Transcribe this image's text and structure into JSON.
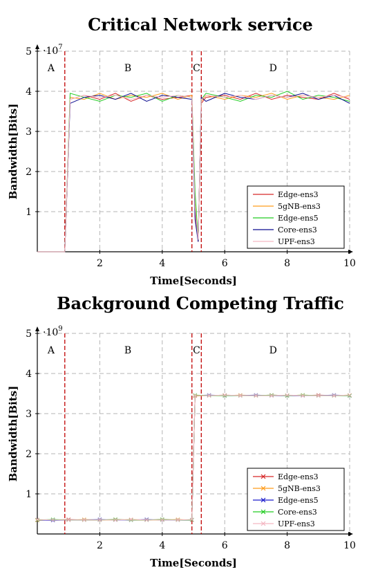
{
  "chart_data": [
    {
      "type": "line",
      "title": "Critical Network service",
      "xlabel": "Time[Seconds]",
      "ylabel": "Bandwidth[Bits]",
      "y_multiplier": "·10",
      "y_exponent": "7",
      "xlim": [
        0,
        10
      ],
      "ylim": [
        0,
        5
      ],
      "xticks": [
        "2",
        "4",
        "6",
        "8",
        "10"
      ],
      "xtick_values": [
        2,
        4,
        6,
        8,
        10
      ],
      "yticks": [
        "1",
        "2",
        "3",
        "4",
        "5"
      ],
      "ytick_values": [
        1,
        2,
        3,
        4,
        5
      ],
      "grid": true,
      "legend_position": "bottom-right",
      "marker": "none",
      "phase_lines": [
        0.88,
        4.95,
        5.25
      ],
      "phases": [
        {
          "label": "A",
          "x": 0.44
        },
        {
          "label": "B",
          "x": 2.9
        },
        {
          "label": "C",
          "x": 5.1
        },
        {
          "label": "D",
          "x": 7.55
        }
      ],
      "series": [
        {
          "name": "Edge-ens3",
          "color": "#d62728",
          "x": [
            0,
            0.88,
            1.05,
            1.5,
            2,
            2.5,
            3,
            3.5,
            4,
            4.5,
            4.95,
            5.05,
            5.15,
            5.25,
            5.4,
            6,
            6.5,
            7,
            7.5,
            8,
            8.5,
            9,
            9.5,
            10
          ],
          "y": [
            0,
            0,
            3.8,
            3.9,
            3.8,
            3.95,
            3.75,
            3.9,
            3.8,
            3.85,
            3.9,
            1.0,
            0.25,
            3.7,
            3.85,
            3.9,
            3.8,
            3.95,
            3.8,
            3.9,
            3.85,
            3.8,
            3.95,
            3.8
          ]
        },
        {
          "name": "5gNB-ens3",
          "color": "#ff9c1a",
          "x": [
            0,
            0.88,
            1.05,
            1.5,
            2,
            2.5,
            3,
            3.5,
            4,
            4.5,
            4.95,
            5.05,
            5.15,
            5.25,
            5.4,
            6,
            6.5,
            7,
            7.5,
            8,
            8.5,
            9,
            9.5,
            10
          ],
          "y": [
            0,
            0,
            3.85,
            3.8,
            3.95,
            3.8,
            3.9,
            3.85,
            3.95,
            3.8,
            3.9,
            1.2,
            0.3,
            3.75,
            3.9,
            3.8,
            3.9,
            3.85,
            3.95,
            3.8,
            3.9,
            3.85,
            3.8,
            3.9
          ]
        },
        {
          "name": "Edge-ens5",
          "color": "#22cc22",
          "x": [
            0,
            0.88,
            1.05,
            1.5,
            2,
            2.5,
            3,
            3.5,
            4,
            4.5,
            4.95,
            5.05,
            5.15,
            5.25,
            5.4,
            6,
            6.5,
            7,
            7.5,
            8,
            8.5,
            9,
            9.5,
            10
          ],
          "y": [
            0,
            0,
            3.95,
            3.85,
            3.75,
            3.9,
            3.85,
            3.95,
            3.75,
            3.9,
            3.85,
            1.5,
            0.28,
            3.8,
            3.95,
            3.85,
            3.75,
            3.9,
            3.85,
            4.0,
            3.8,
            3.9,
            3.85,
            3.75
          ]
        },
        {
          "name": "Core-ens3",
          "color": "#0a0a8f",
          "x": [
            0,
            0.88,
            1.05,
            1.5,
            2,
            2.5,
            3,
            3.5,
            4,
            4.5,
            4.95,
            5.05,
            5.15,
            5.25,
            5.4,
            6,
            6.5,
            7,
            7.5,
            8,
            8.5,
            9,
            9.5,
            10
          ],
          "y": [
            0,
            0,
            3.7,
            3.85,
            3.9,
            3.8,
            3.95,
            3.75,
            3.9,
            3.85,
            3.8,
            0.8,
            0.25,
            3.85,
            3.75,
            3.95,
            3.85,
            3.8,
            3.9,
            3.85,
            3.95,
            3.8,
            3.9,
            3.7
          ]
        },
        {
          "name": "UPF-ens3",
          "color": "#f4b6c2",
          "x": [
            0,
            0.88,
            1.05,
            1.5,
            2,
            2.5,
            3,
            3.5,
            4,
            4.5,
            4.95,
            5.05,
            5.15,
            5.25,
            5.4,
            6,
            6.5,
            7,
            7.5,
            8,
            8.5,
            9,
            9.5,
            10
          ],
          "y": [
            0,
            0,
            3.8,
            3.9,
            3.85,
            3.9,
            3.8,
            3.9,
            3.85,
            3.9,
            3.85,
            1.1,
            0.3,
            3.8,
            3.9,
            3.85,
            3.9,
            3.8,
            3.9,
            3.85,
            3.9,
            3.85,
            3.9,
            3.85
          ]
        }
      ]
    },
    {
      "type": "line",
      "title": "Background Competing Traffic",
      "xlabel": "Time[Seconds]",
      "ylabel": "Bandwidth[Bits]",
      "y_multiplier": "·10",
      "y_exponent": "9",
      "xlim": [
        0,
        10
      ],
      "ylim": [
        0,
        5
      ],
      "xticks": [
        "2",
        "4",
        "6",
        "8",
        "10"
      ],
      "xtick_values": [
        2,
        4,
        6,
        8,
        10
      ],
      "yticks": [
        "1",
        "2",
        "3",
        "4",
        "5"
      ],
      "ytick_values": [
        1,
        2,
        3,
        4,
        5
      ],
      "grid": true,
      "legend_position": "bottom-right",
      "marker": "x",
      "phase_lines": [
        0.88,
        4.95,
        5.25
      ],
      "phases": [
        {
          "label": "A",
          "x": 0.44
        },
        {
          "label": "B",
          "x": 2.9
        },
        {
          "label": "C",
          "x": 5.1
        },
        {
          "label": "D",
          "x": 7.55
        }
      ],
      "series": [
        {
          "name": "Edge-ens3",
          "color": "#d62728",
          "x": [
            0,
            0.5,
            1,
            1.5,
            2,
            2.5,
            3,
            3.5,
            4,
            4.5,
            4.95,
            5.05,
            5.5,
            6,
            6.5,
            7,
            7.5,
            8,
            8.5,
            9,
            9.5,
            10
          ],
          "y": [
            0.35,
            0.35,
            0.36,
            0.35,
            0.35,
            0.36,
            0.35,
            0.35,
            0.36,
            0.35,
            0.35,
            3.45,
            3.45,
            3.46,
            3.45,
            3.45,
            3.46,
            3.45,
            3.45,
            3.46,
            3.45,
            3.45
          ]
        },
        {
          "name": "5gNB-ens3",
          "color": "#ff9c1a",
          "x": [
            0,
            0.5,
            1,
            1.5,
            2,
            2.5,
            3,
            3.5,
            4,
            4.5,
            4.95,
            5.05,
            5.5,
            6,
            6.5,
            7,
            7.5,
            8,
            8.5,
            9,
            9.5,
            10
          ],
          "y": [
            0.34,
            0.35,
            0.35,
            0.36,
            0.35,
            0.35,
            0.36,
            0.35,
            0.35,
            0.36,
            0.35,
            3.44,
            3.45,
            3.45,
            3.46,
            3.45,
            3.45,
            3.45,
            3.46,
            3.45,
            3.45,
            3.46
          ]
        },
        {
          "name": "Edge-ens5",
          "color": "#1a1acc",
          "x": [
            0,
            0.5,
            1,
            1.5,
            2,
            2.5,
            3,
            3.5,
            4,
            4.5,
            4.95,
            5.05,
            5.5,
            6,
            6.5,
            7,
            7.5,
            8,
            8.5,
            9,
            9.5,
            10
          ],
          "y": [
            0.35,
            0.34,
            0.35,
            0.35,
            0.36,
            0.35,
            0.35,
            0.36,
            0.35,
            0.35,
            0.35,
            3.45,
            3.46,
            3.45,
            3.45,
            3.46,
            3.45,
            3.45,
            3.45,
            3.45,
            3.46,
            3.45
          ]
        },
        {
          "name": "Core-ens3",
          "color": "#22cc22",
          "x": [
            0,
            0.5,
            1,
            1.5,
            2,
            2.5,
            3,
            3.5,
            4,
            4.5,
            4.95,
            5.05,
            5.5,
            6,
            6.5,
            7,
            7.5,
            8,
            8.5,
            9,
            9.5,
            10
          ],
          "y": [
            0.35,
            0.36,
            0.35,
            0.35,
            0.35,
            0.36,
            0.35,
            0.35,
            0.36,
            0.35,
            0.35,
            3.46,
            3.45,
            3.45,
            3.45,
            3.45,
            3.46,
            3.45,
            3.46,
            3.45,
            3.45,
            3.45
          ]
        },
        {
          "name": "UPF-ens3",
          "color": "#f4b6c2",
          "x": [
            0,
            0.5,
            1,
            1.5,
            2,
            2.5,
            3,
            3.5,
            4,
            4.5,
            4.95,
            5.05,
            5.5,
            6,
            6.5,
            7,
            7.5,
            8,
            8.5,
            9,
            9.5,
            10
          ],
          "y": [
            0.36,
            0.35,
            0.35,
            0.35,
            0.35,
            0.35,
            0.36,
            0.35,
            0.35,
            0.35,
            0.36,
            3.45,
            3.45,
            3.46,
            3.45,
            3.45,
            3.45,
            3.46,
            3.45,
            3.45,
            3.45,
            3.46
          ]
        }
      ]
    }
  ]
}
